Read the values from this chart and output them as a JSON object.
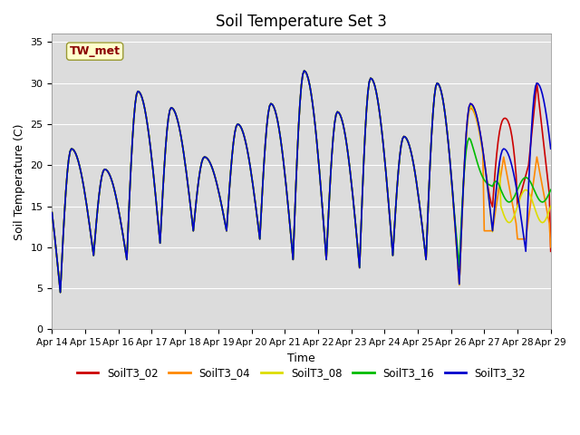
{
  "title": "Soil Temperature Set 3",
  "xlabel": "Time",
  "ylabel": "Soil Temperature (C)",
  "ylim": [
    0,
    36
  ],
  "yticks": [
    0,
    5,
    10,
    15,
    20,
    25,
    30,
    35
  ],
  "annotation_text": "TW_met",
  "annotation_color": "#8B0000",
  "annotation_bg": "#FFFFCC",
  "series_colors": {
    "SoilT3_02": "#CC0000",
    "SoilT3_04": "#FF8800",
    "SoilT3_08": "#DDDD00",
    "SoilT3_16": "#00BB00",
    "SoilT3_32": "#0000CC"
  },
  "bg_color": "#DCDCDC",
  "linewidth": 1.2,
  "xtick_days": [
    14,
    15,
    16,
    17,
    18,
    19,
    20,
    21,
    22,
    23,
    24,
    25,
    26,
    27,
    28,
    29
  ],
  "daily_highs": [
    22,
    19.5,
    29,
    27,
    21,
    25,
    27.5,
    31.5,
    26.5,
    30.6,
    23.5,
    30,
    27.5,
    22,
    30,
    30
  ],
  "daily_lows": [
    4.5,
    9.0,
    8.5,
    10.5,
    12.0,
    12.0,
    11.0,
    8.5,
    8.5,
    7.5,
    9.0,
    8.5,
    5.5,
    12.0,
    9.5,
    12.0
  ],
  "peak_hour": 14,
  "trough_hour": 6
}
